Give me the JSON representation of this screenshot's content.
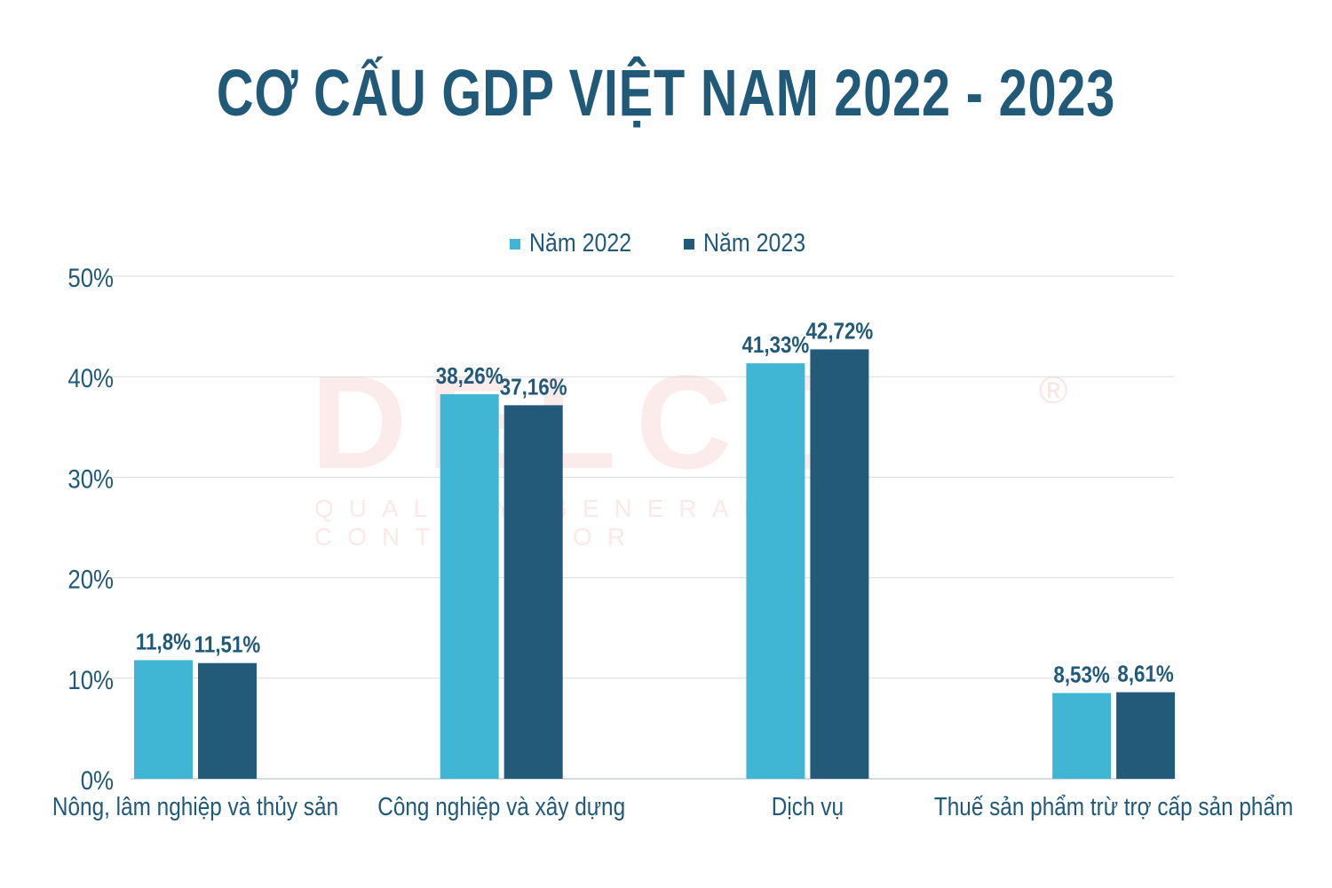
{
  "chart_data": {
    "type": "bar",
    "title": "CƠ CẤU GDP VIỆT NAM 2022 - 2023",
    "categories": [
      "Nông, lâm nghiệp và thủy sản",
      "Công nghiệp và xây dựng",
      "Dịch vụ",
      "Thuế sản phẩm trừ trợ cấp sản phẩm"
    ],
    "series": [
      {
        "name": "Năm 2022",
        "color": "#41b6d4",
        "values": [
          11.8,
          38.26,
          41.33,
          8.53
        ],
        "labels": [
          "11,8%",
          "38,26%",
          "41,33%",
          "8,53%"
        ]
      },
      {
        "name": "Năm 2023",
        "color": "#235a79",
        "values": [
          11.51,
          37.16,
          42.72,
          8.61
        ],
        "labels": [
          "11,51%",
          "37,16%",
          "42,72%",
          "8,61%"
        ]
      }
    ],
    "y_ticks": [
      "0%",
      "10%",
      "20%",
      "30%",
      "40%",
      "50%"
    ],
    "ylim": [
      0,
      50
    ],
    "grid": true,
    "legend_position": "top-center"
  },
  "watermark": {
    "logo": "DELCO",
    "registered": "®",
    "tagline": "QUALITY GENERAL CONTRACTOR"
  },
  "colors": {
    "title": "#215a78",
    "axis_text": "#215a78",
    "gridline": "#d9dde0"
  }
}
